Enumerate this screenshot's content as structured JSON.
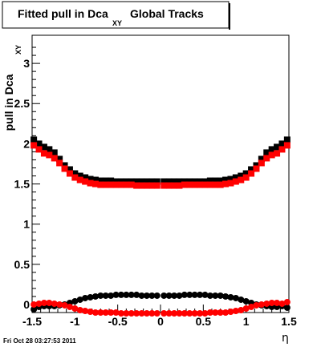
{
  "title_parts": {
    "main": "Fitted pull in Dca",
    "sub": "XY",
    "suffix": "Global Tracks"
  },
  "ylabel_parts": {
    "main": "pull in Dca",
    "sub": "XY"
  },
  "xlabel": "η",
  "datestamp": "Fri Oct 28 03:27:53 2011",
  "colors": {
    "black_series": "#000000",
    "red_series": "#ff0000",
    "axis": "#000000",
    "background": "#ffffff"
  },
  "chart_data": {
    "type": "scatter",
    "title": "Fitted pull in Dca XY Global Tracks",
    "xlabel": "η",
    "ylabel": "pull in Dca XY",
    "xlim": [
      -1.5,
      1.5
    ],
    "ylim": [
      -0.1,
      3.35
    ],
    "x_ticks": [
      -1.5,
      -1,
      -0.5,
      0,
      0.5,
      1,
      1.5
    ],
    "x_tick_labels": [
      "-1.5",
      "-1",
      "-0.5",
      "0",
      "0.5",
      "1",
      "1.5"
    ],
    "y_ticks": [
      0,
      0.5,
      1,
      1.5,
      2,
      2.5,
      3
    ],
    "y_tick_labels": [
      "0",
      "0.5",
      "1",
      "1.5",
      "2",
      "2.5",
      "3"
    ],
    "grid": false,
    "legend": "none",
    "series": [
      {
        "color": "#000000",
        "marker": "square",
        "x": [
          -1.48,
          -1.42,
          -1.36,
          -1.3,
          -1.24,
          -1.18,
          -1.12,
          -1.06,
          -1.0,
          -0.94,
          -0.88,
          -0.82,
          -0.76,
          -0.7,
          -0.64,
          -0.58,
          -0.52,
          -0.46,
          -0.4,
          -0.34,
          -0.28,
          -0.22,
          -0.16,
          -0.1,
          -0.04,
          0.04,
          0.1,
          0.16,
          0.22,
          0.28,
          0.34,
          0.4,
          0.46,
          0.52,
          0.58,
          0.64,
          0.7,
          0.76,
          0.82,
          0.88,
          0.94,
          1.0,
          1.06,
          1.12,
          1.18,
          1.24,
          1.3,
          1.36,
          1.42,
          1.48
        ],
        "values": [
          2.05,
          2.0,
          1.96,
          1.93,
          1.89,
          1.81,
          1.73,
          1.68,
          1.63,
          1.6,
          1.58,
          1.56,
          1.55,
          1.54,
          1.54,
          1.54,
          1.53,
          1.53,
          1.53,
          1.53,
          1.53,
          1.53,
          1.53,
          1.53,
          1.53,
          1.53,
          1.53,
          1.53,
          1.53,
          1.53,
          1.53,
          1.53,
          1.53,
          1.53,
          1.54,
          1.54,
          1.54,
          1.55,
          1.56,
          1.58,
          1.6,
          1.63,
          1.68,
          1.73,
          1.81,
          1.89,
          1.93,
          1.96,
          2.0,
          2.05
        ]
      },
      {
        "color": "#ff0000",
        "marker": "square",
        "x": [
          -1.48,
          -1.42,
          -1.36,
          -1.3,
          -1.24,
          -1.18,
          -1.12,
          -1.06,
          -1.0,
          -0.94,
          -0.88,
          -0.82,
          -0.76,
          -0.7,
          -0.64,
          -0.58,
          -0.52,
          -0.46,
          -0.4,
          -0.34,
          -0.28,
          -0.22,
          -0.16,
          -0.1,
          -0.04,
          0.04,
          0.1,
          0.16,
          0.22,
          0.28,
          0.34,
          0.4,
          0.46,
          0.52,
          0.58,
          0.64,
          0.7,
          0.76,
          0.82,
          0.88,
          0.94,
          1.0,
          1.06,
          1.12,
          1.18,
          1.24,
          1.3,
          1.36,
          1.42,
          1.48
        ],
        "values": [
          1.98,
          1.93,
          1.88,
          1.86,
          1.82,
          1.76,
          1.69,
          1.63,
          1.58,
          1.55,
          1.53,
          1.51,
          1.5,
          1.49,
          1.49,
          1.49,
          1.49,
          1.49,
          1.49,
          1.49,
          1.48,
          1.48,
          1.48,
          1.48,
          1.48,
          1.48,
          1.48,
          1.48,
          1.48,
          1.49,
          1.49,
          1.49,
          1.49,
          1.49,
          1.49,
          1.49,
          1.49,
          1.5,
          1.51,
          1.53,
          1.55,
          1.58,
          1.63,
          1.69,
          1.76,
          1.82,
          1.86,
          1.88,
          1.93,
          1.98
        ]
      },
      {
        "color": "#000000",
        "marker": "circle",
        "x": [
          -1.48,
          -1.42,
          -1.36,
          -1.3,
          -1.24,
          -1.18,
          -1.12,
          -1.06,
          -1.0,
          -0.94,
          -0.88,
          -0.82,
          -0.76,
          -0.7,
          -0.64,
          -0.58,
          -0.52,
          -0.46,
          -0.4,
          -0.34,
          -0.28,
          -0.22,
          -0.16,
          -0.1,
          -0.04,
          0.04,
          0.1,
          0.16,
          0.22,
          0.28,
          0.34,
          0.4,
          0.46,
          0.52,
          0.58,
          0.64,
          0.7,
          0.76,
          0.82,
          0.88,
          0.94,
          1.0,
          1.06,
          1.12,
          1.18,
          1.24,
          1.3,
          1.36,
          1.42,
          1.48
        ],
        "values": [
          -0.06,
          -0.03,
          -0.02,
          -0.02,
          -0.02,
          -0.01,
          0.0,
          0.02,
          0.04,
          0.06,
          0.08,
          0.09,
          0.1,
          0.11,
          0.11,
          0.11,
          0.12,
          0.12,
          0.12,
          0.12,
          0.12,
          0.11,
          0.11,
          0.11,
          0.11,
          0.11,
          0.11,
          0.11,
          0.11,
          0.12,
          0.12,
          0.12,
          0.12,
          0.12,
          0.11,
          0.11,
          0.11,
          0.1,
          0.09,
          0.08,
          0.06,
          0.04,
          0.02,
          0.0,
          -0.01,
          -0.02,
          -0.03,
          -0.03,
          -0.02,
          -0.04
        ]
      },
      {
        "color": "#ff0000",
        "marker": "circle",
        "x": [
          -1.48,
          -1.42,
          -1.36,
          -1.3,
          -1.24,
          -1.18,
          -1.12,
          -1.06,
          -1.0,
          -0.94,
          -0.88,
          -0.82,
          -0.76,
          -0.7,
          -0.64,
          -0.58,
          -0.52,
          -0.46,
          -0.4,
          -0.34,
          -0.28,
          -0.22,
          -0.16,
          -0.1,
          -0.04,
          0.04,
          0.1,
          0.16,
          0.22,
          0.28,
          0.34,
          0.4,
          0.46,
          0.52,
          0.58,
          0.64,
          0.7,
          0.76,
          0.82,
          0.88,
          0.94,
          1.0,
          1.06,
          1.12,
          1.18,
          1.24,
          1.3,
          1.36,
          1.42,
          1.48
        ],
        "values": [
          0.0,
          0.01,
          0.02,
          0.02,
          0.01,
          0.0,
          -0.01,
          -0.03,
          -0.05,
          -0.07,
          -0.08,
          -0.09,
          -0.1,
          -0.1,
          -0.1,
          -0.1,
          -0.1,
          -0.11,
          -0.11,
          -0.11,
          -0.11,
          -0.11,
          -0.11,
          -0.11,
          -0.11,
          -0.11,
          -0.11,
          -0.11,
          -0.11,
          -0.11,
          -0.11,
          -0.11,
          -0.11,
          -0.11,
          -0.1,
          -0.1,
          -0.1,
          -0.1,
          -0.09,
          -0.08,
          -0.07,
          -0.05,
          -0.03,
          -0.01,
          0.0,
          0.01,
          0.02,
          0.02,
          0.01,
          0.03
        ]
      }
    ]
  }
}
